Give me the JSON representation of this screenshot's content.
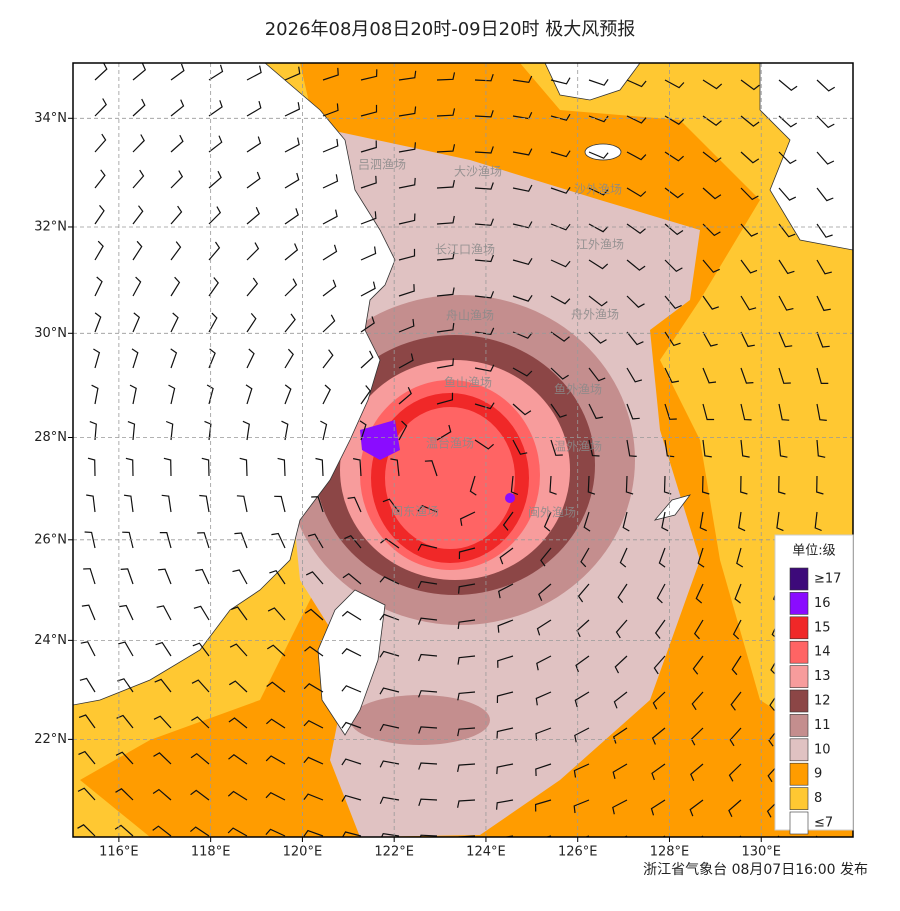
{
  "header": {
    "title": "2026年08月08日20时-09日20时 极大风预报"
  },
  "map": {
    "lonlim": [
      115,
      132
    ],
    "latlim": [
      20,
      35
    ],
    "lon_ticks": [
      {
        "value": 116,
        "label": "116°E"
      },
      {
        "value": 118,
        "label": "118°E"
      },
      {
        "value": 120,
        "label": "120°E"
      },
      {
        "value": 122,
        "label": "122°E"
      },
      {
        "value": 124,
        "label": "124°E"
      },
      {
        "value": 126,
        "label": "126°E"
      },
      {
        "value": 128,
        "label": "128°E"
      },
      {
        "value": 130,
        "label": "130°E"
      }
    ],
    "lat_ticks": [
      {
        "value": 22,
        "label": "22°N"
      },
      {
        "value": 24,
        "label": "24°N"
      },
      {
        "value": 26,
        "label": "26°N"
      },
      {
        "value": 28,
        "label": "28°N"
      },
      {
        "value": 30,
        "label": "30°N"
      },
      {
        "value": 32,
        "label": "32°N"
      },
      {
        "value": 34,
        "label": "34°N"
      }
    ],
    "sea_areas": [
      "吕泗渔场",
      "大沙渔场",
      "沙外渔场",
      "长江口渔场",
      "江外渔场",
      "舟山渔场",
      "舟外渔场",
      "鱼山渔场",
      "鱼外渔场",
      "温台渔场",
      "温外渔场",
      "闽东渔场",
      "闽外渔场"
    ]
  },
  "legend": {
    "title": "单位:级",
    "items": [
      {
        "label": "≥17",
        "color": "#3d0a7a"
      },
      {
        "label": "16",
        "color": "#8a0cff"
      },
      {
        "label": "15",
        "color": "#f02828"
      },
      {
        "label": "14",
        "color": "#ff6464"
      },
      {
        "label": "13",
        "color": "#f79c9c"
      },
      {
        "label": "12",
        "color": "#8c4646"
      },
      {
        "label": "11",
        "color": "#c48e8e"
      },
      {
        "label": "10",
        "color": "#e0c2c2"
      },
      {
        "label": "9",
        "color": "#ff9c00"
      },
      {
        "label": "8",
        "color": "#ffc832"
      },
      {
        "label": "≤7",
        "color": "#ffffff"
      }
    ]
  },
  "footer": {
    "text": "浙江省气象台 08月07日16:00 发布"
  }
}
